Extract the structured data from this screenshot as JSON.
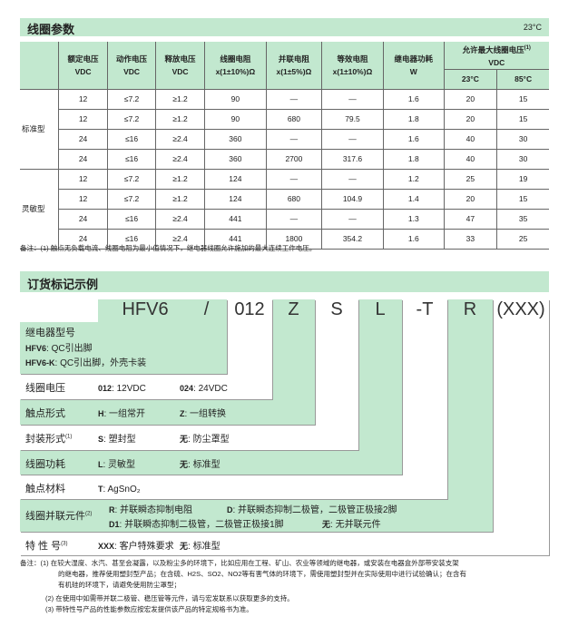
{
  "coil": {
    "title": "线圈参数",
    "temp": "23°C",
    "headers": [
      "额定电压\nVDC",
      "动作电压\nVDC",
      "释放电压\nVDC",
      "线圈电阻\nx(1±10%)Ω",
      "并联电阻\nx(1±5%)Ω",
      "等效电阻\nx(1±10%)Ω",
      "继电器功耗\nW"
    ],
    "max_header": "允许最大线圈电压",
    "max_sup": "(1)",
    "max_unit": "VDC",
    "t23": "23°C",
    "t85": "85°C",
    "groups": [
      {
        "name": "标准型",
        "rows": [
          [
            "12",
            "≤7.2",
            "≥1.2",
            "90",
            "—",
            "—",
            "1.6",
            "20",
            "15"
          ],
          [
            "12",
            "≤7.2",
            "≥1.2",
            "90",
            "680",
            "79.5",
            "1.8",
            "20",
            "15"
          ],
          [
            "24",
            "≤16",
            "≥2.4",
            "360",
            "—",
            "—",
            "1.6",
            "40",
            "30"
          ],
          [
            "24",
            "≤16",
            "≥2.4",
            "360",
            "2700",
            "317.6",
            "1.8",
            "40",
            "30"
          ]
        ]
      },
      {
        "name": "灵敏型",
        "rows": [
          [
            "12",
            "≤7.2",
            "≥1.2",
            "124",
            "—",
            "—",
            "1.2",
            "25",
            "19"
          ],
          [
            "12",
            "≤7.2",
            "≥1.2",
            "124",
            "680",
            "104.9",
            "1.4",
            "20",
            "15"
          ],
          [
            "24",
            "≤16",
            "≥2.4",
            "441",
            "—",
            "—",
            "1.3",
            "47",
            "35"
          ],
          [
            "24",
            "≤16",
            "≥2.4",
            "441",
            "1800",
            "354.2",
            "1.6",
            "33",
            "25"
          ]
        ]
      }
    ],
    "note": "备注：(1) 触点无负载电流、线圈电阻为最小值情况下，继电器线圈允许施加的最大连续工作电压。"
  },
  "order": {
    "title": "订货标记示例",
    "codes": [
      "HFV6",
      "/",
      "012",
      "Z",
      "S",
      "L",
      "-T",
      "R",
      "(XXX)"
    ],
    "model_label": "继电器型号",
    "model_opts": [
      {
        "k": "HFV6",
        "v": ": QC引出脚"
      },
      {
        "k": "HFV6-K",
        "v": ": QC引出脚，外壳卡装"
      }
    ],
    "rows": [
      {
        "label": "线圈电压",
        "sup": "",
        "opts": [
          {
            "k": "012",
            "v": ": 12VDC"
          },
          {
            "k": "024",
            "v": ": 24VDC"
          }
        ]
      },
      {
        "label": "触点形式",
        "sup": "",
        "opts": [
          {
            "k": "H",
            "v": ": 一组常开"
          },
          {
            "k": "Z",
            "v": ": 一组转换"
          }
        ]
      },
      {
        "label": "封装形式",
        "sup": "(1)",
        "opts": [
          {
            "k": "S",
            "v": ": 塑封型"
          },
          {
            "k": "无",
            "v": ": 防尘罩型"
          }
        ]
      },
      {
        "label": "线圈功耗",
        "sup": "",
        "opts": [
          {
            "k": "L",
            "v": ": 灵敏型"
          },
          {
            "k": "无",
            "v": ": 标准型"
          }
        ]
      },
      {
        "label": "触点材料",
        "sup": "",
        "opts": [
          {
            "k": "T",
            "v": ": AgSnO₂"
          }
        ]
      },
      {
        "label": "线圈并联元件",
        "sup": "(2)",
        "opts": [
          {
            "k": "R",
            "v": ": 并联瞬态抑制电阻"
          },
          {
            "k": "D",
            "v": ": 并联瞬态抑制二极管，二极管正极接2脚"
          },
          {
            "k": "D1",
            "v": ": 并联瞬态抑制二极管，二极管正极接1脚"
          },
          {
            "k": "无",
            "v": ": 无并联元件"
          }
        ]
      },
      {
        "label": "特 性 号",
        "sup": "(3)",
        "opts": [
          {
            "k": "XXX",
            "v": ": 客户特殊要求"
          },
          {
            "k": "无",
            "v": ": 标准型"
          }
        ]
      }
    ],
    "notes": [
      "备注：(1) 在较大湿度、水汽、甚至会凝露，以及粉尘多的环境下，比如应用在工程、矿山、农业等领域的继电器，或安装在电器盒外部带安装支架",
      "的继电器，推荐使用塑封型产品；在含硫、H2S、SO2、NO2等有害气体的环境下，需使用塑封型并在实际使用中进行试验确认；在含有",
      "有机硅的环境下，请避免使用防尘罩型；",
      "(2) 在使用中如需带并联二极管、稳压管等元件，请与宏发联系以获取更多的支持。",
      "(3) 带特性号产品的性能参数应按宏发提供该产品的特定规格书为准。"
    ]
  },
  "colors": {
    "green": "#c2e8cf"
  }
}
